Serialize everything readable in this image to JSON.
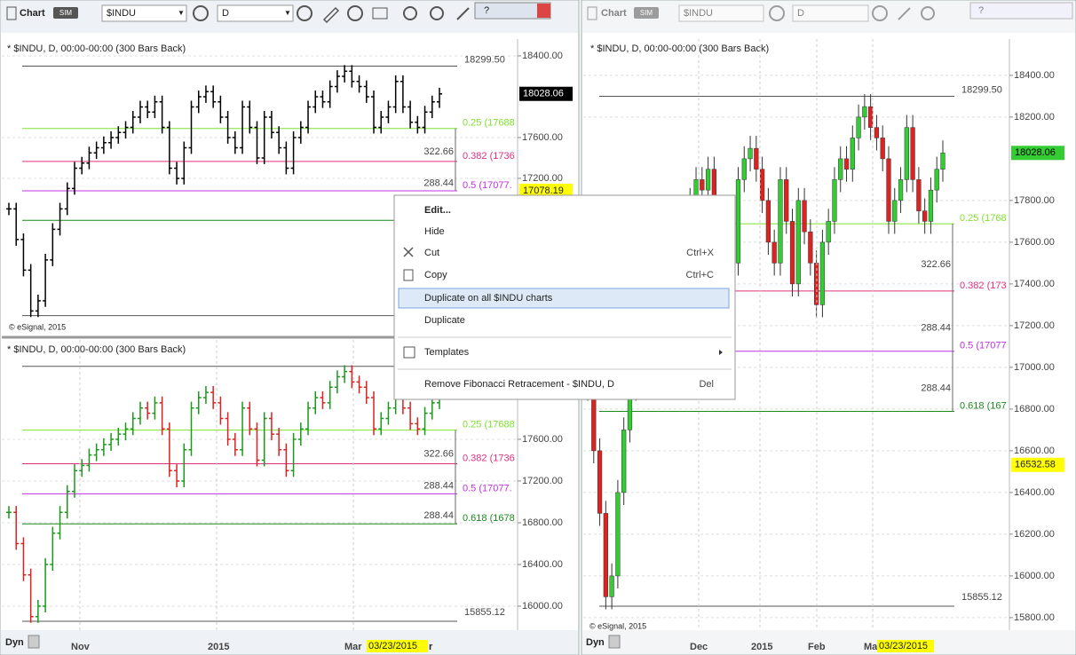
{
  "windows": [
    {
      "title": "Chart",
      "mode": "SIM",
      "symbol": "$INDU",
      "interval": "D"
    },
    {
      "title": "Chart",
      "mode": "SIM",
      "symbol": "$INDU",
      "interval": "D"
    }
  ],
  "pane_header": "* $INDU, D, 00:00-00:00 (300 Bars Back)",
  "copyright": "© eSignal, 2015",
  "dyn": "Dyn",
  "price": {
    "values": [
      16900,
      16600,
      16300,
      15900,
      16000,
      16400,
      16700,
      16900,
      17100,
      17300,
      17350,
      17450,
      17500,
      17550,
      17600,
      17650,
      17700,
      17800,
      17900,
      17850,
      17950,
      17700,
      17300,
      17200,
      17500,
      17900,
      18000,
      18050,
      17950,
      17800,
      17600,
      17500,
      17900,
      17700,
      17400,
      17800,
      17650,
      17500,
      17300,
      17600,
      17700,
      17900,
      18000,
      17950,
      18100,
      18200,
      18250,
      18150,
      18100,
      18000,
      17700,
      17800,
      17900,
      18150,
      17900,
      17750,
      17700,
      17850,
      17950,
      18028.06
    ]
  },
  "fib": {
    "high": {
      "value": 18299.5,
      "label": "18299.50"
    },
    "low": {
      "value": 15855.12,
      "label": "15855.12"
    },
    "levels": [
      {
        "value": 17688.4,
        "color": "#7fe030"
      },
      {
        "value": 17365.8,
        "color": "#e0307f"
      },
      {
        "value": 17077.3,
        "color": "#c030e0"
      },
      {
        "value": 16788.9,
        "color": "#1a8a1a"
      }
    ]
  },
  "charts": [
    {
      "type": "ohlc",
      "ylim": [
        15660,
        18565
      ],
      "yticks": [
        {
          "value": 18400,
          "label": "18400.00"
        },
        {
          "value": 17600,
          "label": "17600.00"
        },
        {
          "value": 17200,
          "label": "17200.00"
        }
      ],
      "last": {
        "value": 18028.06,
        "label": "18028.06"
      },
      "marker": {
        "value": 17078.19,
        "label": "17078.19"
      },
      "fib_labels": [
        "0.25 (17688",
        "0.382 (1736",
        "0.5 (17077."
      ],
      "spans": [
        322.66,
        288.44
      ]
    },
    {
      "type": "colored_ohlc",
      "ylim": [
        15770,
        18553
      ],
      "yticks": [
        {
          "value": 17600,
          "label": "17600.00"
        },
        {
          "value": 17200,
          "label": "17200.00"
        },
        {
          "value": 16800,
          "label": "16800.00"
        },
        {
          "value": 16400,
          "label": "16400.00"
        },
        {
          "value": 16000,
          "label": "16000.00"
        }
      ],
      "fib_labels": [
        "0.25 (17688",
        "0.382 (1736",
        "0.5 (17077.",
        "0.618 (1678"
      ],
      "spans": [
        322.66,
        288.44,
        288.44
      ]
    },
    {
      "type": "candlestick",
      "ylim": [
        15740,
        18574
      ],
      "yticks": [
        {
          "value": 18400,
          "label": "18400.00"
        },
        {
          "value": 18200,
          "label": "18200.00"
        },
        {
          "value": 17800,
          "label": "17800.00"
        },
        {
          "value": 17600,
          "label": "17600.00"
        },
        {
          "value": 17400,
          "label": "17400.00"
        },
        {
          "value": 17200,
          "label": "17200.00"
        },
        {
          "value": 17000,
          "label": "17000.00"
        },
        {
          "value": 16800,
          "label": "16800.00"
        },
        {
          "value": 16600,
          "label": "16600.00"
        },
        {
          "value": 16400,
          "label": "16400.00"
        },
        {
          "value": 16200,
          "label": "16200.00"
        },
        {
          "value": 16000,
          "label": "16000.00"
        },
        {
          "value": 15800,
          "label": "15800.00"
        }
      ],
      "last": {
        "value": 18028.06,
        "label": "18028.06"
      },
      "marker": {
        "value": 16532.58,
        "label": "16532.58"
      },
      "fib_labels": [
        "0.25 (1768",
        "0.382 (173",
        "0.5 (17077",
        "0.618 (167"
      ],
      "spans": [
        322.66,
        288.44,
        288.44
      ]
    }
  ],
  "time_axes": [
    {
      "labels": [
        "Nov",
        "2015",
        "Mar"
      ],
      "cursor": "03/23/2015",
      "tail": "r"
    },
    {
      "labels": [
        "Dec",
        "2015",
        "Feb",
        "Mar"
      ],
      "cursor": "03/23/2015"
    }
  ],
  "menu": [
    {
      "label": "Edit...",
      "bold": true
    },
    {
      "label": "Hide"
    },
    {
      "label": "Cut",
      "shortcut": "Ctrl+X"
    },
    {
      "label": "Copy",
      "shortcut": "Ctrl+C"
    },
    {
      "label": "Duplicate on all $INDU charts",
      "highlight": true
    },
    {
      "label": "Duplicate"
    },
    {
      "label": "Templates",
      "submenu": true
    },
    {
      "label": "Remove Fibonacci Retracement - $INDU, D",
      "shortcut": "Del"
    }
  ]
}
